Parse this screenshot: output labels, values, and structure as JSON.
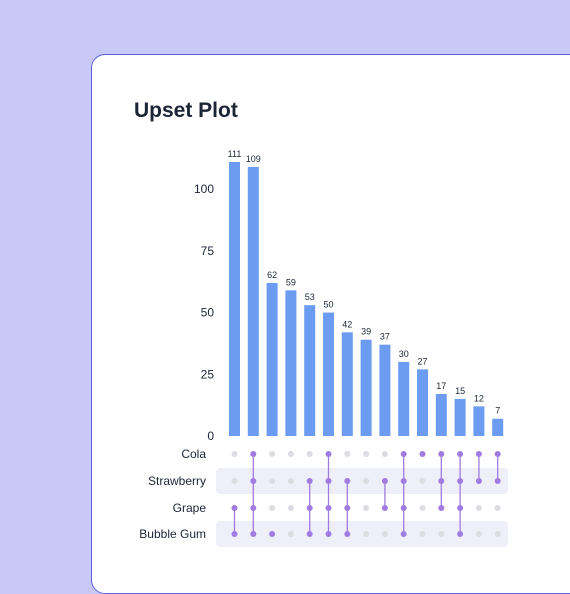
{
  "title": "Upset Plot",
  "colors": {
    "bar": "#6b9cf2",
    "dot_active": "#a07be0",
    "dot_inactive": "#dcdce2",
    "row_band": "#eeeff8",
    "page_bg": "#c8c9f7"
  },
  "chart_data": {
    "type": "bar",
    "title": "Upset Plot",
    "xlabel": "",
    "ylabel": "",
    "ylim": [
      0,
      111
    ],
    "yticks": [
      0,
      25,
      50,
      75,
      100
    ],
    "grid": false,
    "values": [
      111,
      109,
      62,
      59,
      53,
      50,
      42,
      39,
      37,
      30,
      27,
      17,
      15,
      12,
      7
    ],
    "sets": [
      "Cola",
      "Strawberry",
      "Grape",
      "Bubble Gum"
    ],
    "membership": [
      [
        0,
        0,
        1,
        1
      ],
      [
        1,
        1,
        1,
        1
      ],
      [
        0,
        0,
        0,
        1
      ],
      [
        0,
        0,
        0,
        0
      ],
      [
        0,
        1,
        1,
        1
      ],
      [
        1,
        1,
        1,
        1
      ],
      [
        0,
        1,
        1,
        1
      ],
      [
        0,
        0,
        0,
        0
      ],
      [
        0,
        1,
        1,
        0
      ],
      [
        1,
        1,
        1,
        1
      ],
      [
        1,
        0,
        0,
        0
      ],
      [
        1,
        1,
        1,
        0
      ],
      [
        1,
        1,
        1,
        1
      ],
      [
        1,
        1,
        0,
        0
      ],
      [
        1,
        1,
        0,
        0
      ]
    ]
  }
}
